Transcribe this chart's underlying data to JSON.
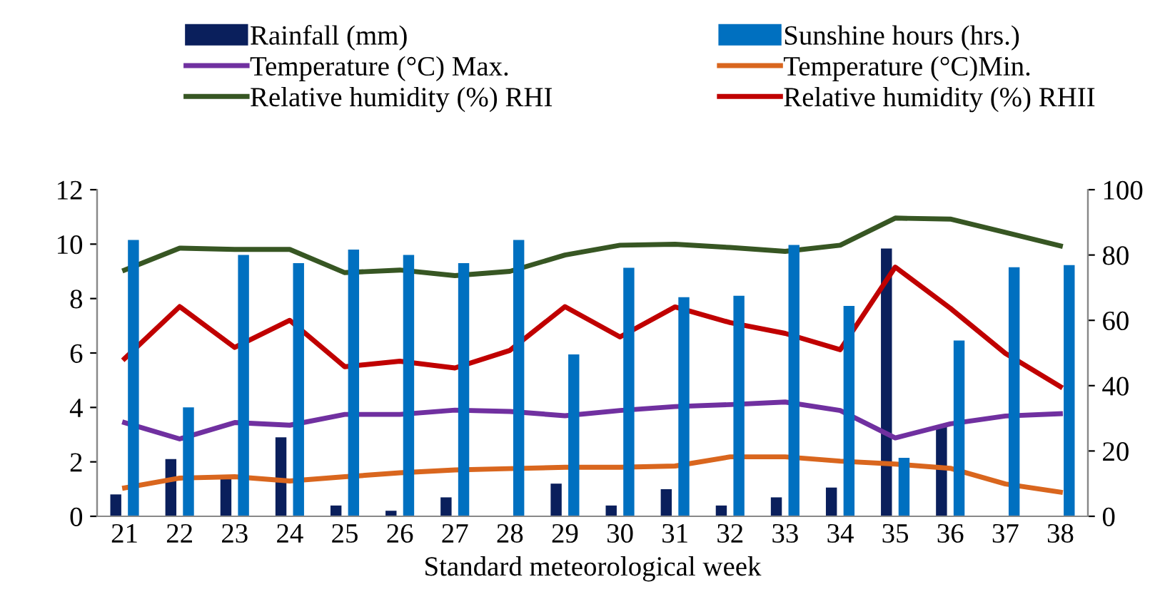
{
  "chart_data": {
    "type": "bar",
    "xlabel": "Standard meteorological week",
    "categories": [
      "21",
      "22",
      "23",
      "24",
      "25",
      "26",
      "27",
      "28",
      "29",
      "30",
      "31",
      "32",
      "33",
      "34",
      "35",
      "36",
      "37",
      "38"
    ],
    "ylim": [
      0,
      12
    ],
    "yticks": [
      0,
      2,
      4,
      6,
      8,
      10,
      12
    ],
    "y2lim": [
      0,
      100
    ],
    "y2ticks": [
      0,
      20,
      40,
      60,
      80,
      100
    ],
    "grid": false,
    "legend": "top",
    "series": [
      {
        "name": "Rainfall (mm)",
        "axis": "y2",
        "color": "#0a1f5c",
        "values": [
          6.7,
          17.5,
          11.7,
          24.2,
          3.3,
          1.7,
          5.8,
          0,
          10,
          3.3,
          8.3,
          3.3,
          5.8,
          8.8,
          82,
          27.5,
          0,
          0
        ]
      },
      {
        "name": "Sunshine hours (hrs.)",
        "color": "#0070c0",
        "values": [
          10.15,
          4.0,
          9.6,
          9.3,
          9.8,
          9.6,
          9.3,
          10.15,
          5.95,
          9.13,
          8.05,
          8.1,
          9.97,
          7.73,
          2.15,
          6.46,
          9.15,
          9.23
        ]
      },
      {
        "name": "Temperature (°C) Max.",
        "type": "line",
        "axis": "y2",
        "color": "#7030a0",
        "values": [
          28.7,
          23.7,
          28.7,
          27.9,
          31.2,
          31.2,
          32.5,
          32.1,
          30.8,
          32.4,
          33.6,
          34.2,
          35,
          32.4,
          24,
          28.3,
          30.7,
          31.4
        ]
      },
      {
        "name": "Temperature (°C)Min.",
        "type": "line",
        "axis": "y2",
        "color": "#d9661e",
        "values": [
          8.7,
          11.7,
          12.1,
          10.8,
          12.1,
          13.3,
          14.2,
          14.6,
          15,
          15,
          15.4,
          18.2,
          18.2,
          16.9,
          16,
          14.7,
          9.9,
          7.4
        ]
      },
      {
        "name": "Relative humidity (%) RHI",
        "type": "line",
        "axis": "y2",
        "color": "#375623",
        "values": [
          75.4,
          82.1,
          81.7,
          81.7,
          74.6,
          75.4,
          73.7,
          75,
          80,
          83,
          83.3,
          82.3,
          81.1,
          83,
          91.3,
          91,
          86.9,
          82.8
        ]
      },
      {
        "name": "Relative humidity (%) RHII",
        "type": "line",
        "axis": "y2",
        "color": "#c00000",
        "values": [
          48.3,
          64.2,
          51.7,
          60,
          45.8,
          47.5,
          45.4,
          50.8,
          64.2,
          54.9,
          64.1,
          59.3,
          56,
          51,
          76.3,
          63.7,
          49.9,
          39.7
        ]
      }
    ]
  }
}
